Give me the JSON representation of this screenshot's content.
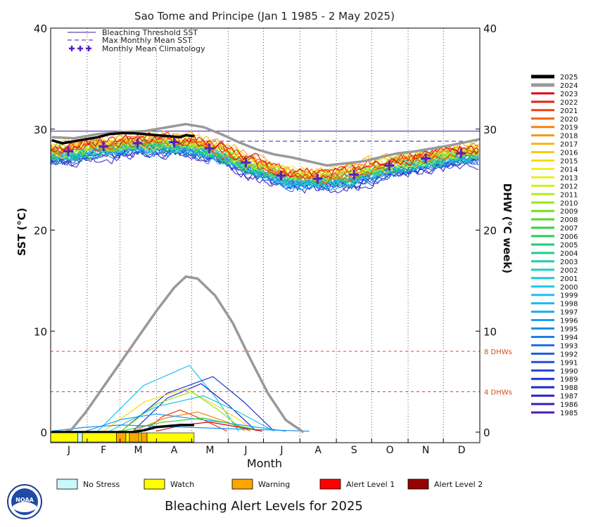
{
  "chart_data": {
    "type": "line",
    "title": "Sao Tome and Principe      (Jan 1 1985 - 2 May 2025)",
    "xlabel": "Month",
    "ylabel_left": "SST (°C)",
    "ylabel_right": "DHW (°C week)",
    "ylim": [
      0,
      40
    ],
    "xlim_days": [
      0,
      365
    ],
    "left_ticks": [
      "0",
      "10",
      "20",
      "30",
      "40"
    ],
    "right_ticks": [
      "0",
      "10",
      "20",
      "30",
      "40"
    ],
    "months": [
      "J",
      "F",
      "M",
      "A",
      "M",
      "J",
      "J",
      "A",
      "S",
      "O",
      "N",
      "D"
    ],
    "grid": "vertical dotted month lines",
    "legend_placement": "top-left inside plot",
    "legend_items": [
      {
        "label": "Bleaching Threshold SST",
        "style": "solid",
        "color": "#3c1aa0"
      },
      {
        "label": "Max Monthly Mean SST",
        "style": "dashed",
        "color": "#3c1aa0"
      },
      {
        "label": "Monthly Mean Climatology",
        "style": "plus",
        "color": "#5a1fc0"
      }
    ],
    "bleaching_threshold": 29.8,
    "max_monthly_mean": 28.8,
    "climatology": [
      {
        "day": 15,
        "value": 27.8
      },
      {
        "day": 45,
        "value": 28.3
      },
      {
        "day": 74,
        "value": 28.6
      },
      {
        "day": 105,
        "value": 28.7
      },
      {
        "day": 135,
        "value": 28.1
      },
      {
        "day": 166,
        "value": 26.7
      },
      {
        "day": 196,
        "value": 25.4
      },
      {
        "day": 227,
        "value": 25.1
      },
      {
        "day": 258,
        "value": 25.5
      },
      {
        "day": 288,
        "value": 26.4
      },
      {
        "day": 319,
        "value": 27.1
      },
      {
        "day": 349,
        "value": 27.6
      }
    ],
    "dhw_reference_lines": [
      {
        "value": 8,
        "label": "8 DHWs"
      },
      {
        "value": 4,
        "label": "4 DHWs"
      }
    ],
    "years": [
      "2025",
      "2024",
      "2023",
      "2022",
      "2021",
      "2020",
      "2019",
      "2018",
      "2017",
      "2016",
      "2015",
      "2014",
      "2013",
      "2012",
      "2011",
      "2010",
      "2009",
      "2008",
      "2007",
      "2006",
      "2005",
      "2004",
      "2003",
      "2002",
      "2001",
      "2000",
      "1999",
      "1998",
      "1997",
      "1996",
      "1995",
      "1994",
      "1993",
      "1992",
      "1991",
      "1990",
      "1989",
      "1988",
      "1987",
      "1986",
      "1985"
    ],
    "year_colors": [
      "#000000",
      "#999999",
      "#e0000a",
      "#e81e0a",
      "#f0400a",
      "#f4620a",
      "#f6820a",
      "#f69a14",
      "#f6b41e",
      "#f6c81e",
      "#f6dc1e",
      "#f6ee1e",
      "#e6f21e",
      "#cdf21e",
      "#b2ee1e",
      "#96e61e",
      "#76de1e",
      "#54d628",
      "#38d03c",
      "#28cc58",
      "#1ecc72",
      "#1ecc8c",
      "#1ecca4",
      "#1eccbc",
      "#1ecad0",
      "#1ec6e0",
      "#1ec0ec",
      "#1eb8f0",
      "#1eacf0",
      "#1e9ef0",
      "#1e8eee",
      "#1e7ee8",
      "#1e6ee2",
      "#1e5edc",
      "#1e50d8",
      "#1e42d2",
      "#1e36cc",
      "#1e2ac6",
      "#2c20c0",
      "#3a1cb8",
      "#4a1cb0"
    ],
    "highlight_series": [
      {
        "name": "2025",
        "sst": [
          [
            1,
            28.9
          ],
          [
            10,
            28.6
          ],
          [
            20,
            28.8
          ],
          [
            30,
            29.0
          ],
          [
            40,
            29.2
          ],
          [
            50,
            29.5
          ],
          [
            60,
            29.6
          ],
          [
            70,
            29.6
          ],
          [
            80,
            29.5
          ],
          [
            90,
            29.4
          ],
          [
            100,
            29.3
          ],
          [
            110,
            29.2
          ],
          [
            115,
            29.4
          ],
          [
            122,
            29.3
          ]
        ],
        "dhw": [
          [
            1,
            0
          ],
          [
            70,
            0
          ],
          [
            80,
            0.2
          ],
          [
            90,
            0.5
          ],
          [
            100,
            0.6
          ],
          [
            110,
            0.7
          ],
          [
            122,
            0.7
          ]
        ]
      },
      {
        "name": "2024",
        "sst": [
          [
            1,
            29.2
          ],
          [
            20,
            29.1
          ],
          [
            40,
            29.5
          ],
          [
            60,
            29.7
          ],
          [
            80,
            29.8
          ],
          [
            100,
            30.2
          ],
          [
            115,
            30.5
          ],
          [
            130,
            30.2
          ],
          [
            145,
            29.5
          ],
          [
            160,
            28.7
          ],
          [
            175,
            28.0
          ],
          [
            190,
            27.5
          ],
          [
            205,
            27.2
          ],
          [
            220,
            26.8
          ],
          [
            235,
            26.4
          ],
          [
            250,
            26.6
          ],
          [
            265,
            26.8
          ],
          [
            280,
            27.2
          ],
          [
            295,
            27.6
          ],
          [
            310,
            27.8
          ],
          [
            325,
            28.1
          ],
          [
            340,
            28.4
          ],
          [
            365,
            29.0
          ]
        ],
        "dhw": [
          [
            1,
            0
          ],
          [
            12,
            0
          ],
          [
            18,
            0.3
          ],
          [
            30,
            2.0
          ],
          [
            45,
            4.5
          ],
          [
            60,
            7.0
          ],
          [
            75,
            9.5
          ],
          [
            90,
            12.0
          ],
          [
            105,
            14.3
          ],
          [
            115,
            15.4
          ],
          [
            125,
            15.2
          ],
          [
            140,
            13.5
          ],
          [
            155,
            10.8
          ],
          [
            170,
            7.2
          ],
          [
            185,
            3.8
          ],
          [
            200,
            1.2
          ],
          [
            215,
            0
          ]
        ]
      }
    ],
    "dhw_other_peaks": [
      {
        "color": "#1ec0ec",
        "peak": 6.6,
        "start": 40,
        "peak_day": 118,
        "end": 160
      },
      {
        "color": "#1e36cc",
        "peak": 5.5,
        "start": 60,
        "peak_day": 138,
        "end": 190
      },
      {
        "color": "#1e2ac6",
        "peak": 4.8,
        "start": 70,
        "peak_day": 128,
        "end": 175
      },
      {
        "color": "#f6dc1e",
        "peak": 4.3,
        "start": 45,
        "peak_day": 115,
        "end": 175
      },
      {
        "color": "#96e61e",
        "peak": 4.0,
        "start": 60,
        "peak_day": 120,
        "end": 165
      },
      {
        "color": "#1ec6e0",
        "peak": 3.6,
        "start": 50,
        "peak_day": 130,
        "end": 190
      },
      {
        "color": "#f0400a",
        "peak": 2.2,
        "start": 80,
        "peak_day": 110,
        "end": 150
      },
      {
        "color": "#f6820a",
        "peak": 2.0,
        "start": 70,
        "peak_day": 125,
        "end": 170
      },
      {
        "color": "#1e9ef0",
        "peak": 1.8,
        "start": 30,
        "peak_day": 90,
        "end": 200
      },
      {
        "color": "#38d03c",
        "peak": 1.4,
        "start": 60,
        "peak_day": 130,
        "end": 180
      },
      {
        "color": "#e0000a",
        "peak": 1.0,
        "start": 90,
        "peak_day": 135,
        "end": 180
      },
      {
        "color": "#1e8eee",
        "peak": 0.7,
        "start": 0,
        "peak_day": 60,
        "end": 220
      }
    ],
    "alert_bar": [
      {
        "level": "watch",
        "start": 0,
        "end": 23
      },
      {
        "level": "no-stress",
        "start": 23,
        "end": 27
      },
      {
        "level": "watch",
        "start": 27,
        "end": 56
      },
      {
        "level": "warning",
        "start": 56,
        "end": 64
      },
      {
        "level": "watch",
        "start": 64,
        "end": 67
      },
      {
        "level": "warning",
        "start": 67,
        "end": 75
      },
      {
        "level": "watch",
        "start": 75,
        "end": 77
      },
      {
        "level": "warning",
        "start": 77,
        "end": 82
      },
      {
        "level": "watch",
        "start": 82,
        "end": 122
      }
    ],
    "alert_levels": [
      {
        "key": "no-stress",
        "label": "No Stress",
        "color": "#c8f8f8"
      },
      {
        "key": "watch",
        "label": "Watch",
        "color": "#ffff00"
      },
      {
        "key": "warning",
        "label": "Warning",
        "color": "#ffa500"
      },
      {
        "key": "alert1",
        "label": "Alert Level 1",
        "color": "#ff0000"
      },
      {
        "key": "alert2",
        "label": "Alert Level 2",
        "color": "#960000"
      }
    ],
    "footer_title": "Bleaching Alert Levels for 2025",
    "logo_text": "NOAA"
  }
}
